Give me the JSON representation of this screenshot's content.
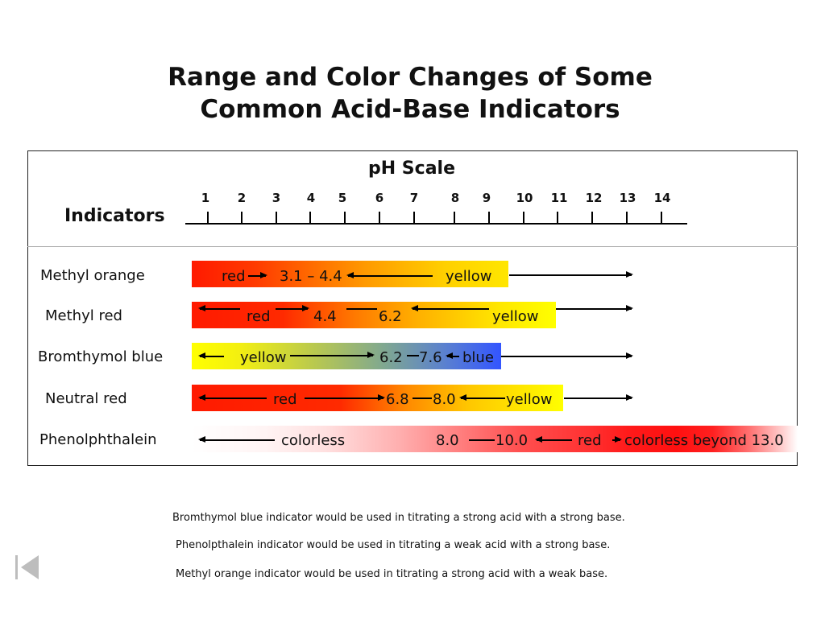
{
  "title_line1": "Range and Color Changes of Some",
  "title_line2": "Common Acid-Base Indicators",
  "scale_title": "pH Scale",
  "indicators_header": "Indicators",
  "ticks": [
    "1",
    "2",
    "3",
    "4",
    "5",
    "6",
    "7",
    "8",
    "9",
    "10",
    "11",
    "12",
    "13",
    "14"
  ],
  "indicators": [
    {
      "name": "Methyl orange",
      "labels": [
        "red",
        "3.1 – 4.4",
        "yellow"
      ]
    },
    {
      "name": "Methyl red",
      "labels": [
        "red",
        "4.4",
        "6.2",
        "yellow"
      ]
    },
    {
      "name": "Bromthymol blue",
      "labels": [
        "yellow",
        "6.2",
        "7.6",
        "blue"
      ]
    },
    {
      "name": "Neutral red",
      "labels": [
        "red",
        "6.8",
        "8.0",
        "yellow"
      ]
    },
    {
      "name": "Phenolphthalein",
      "labels": [
        "colorless",
        "8.0",
        "10.0",
        "red",
        "colorless beyond 13.0"
      ]
    }
  ],
  "notes": [
    "Bromthymol blue indicator would be used in titrating a strong acid with a strong base.",
    "Phenolpthalein indicator would be used in titrating a weak acid with a strong base.",
    "Methyl orange indicator would be used in titrating a strong acid with a weak base."
  ],
  "icons": {
    "nav": "skip-back-icon"
  },
  "colors": {
    "red": "#ff1a00",
    "orange": "#ffa500",
    "yellow": "#ffff00",
    "blue": "#3355ff",
    "pink_light": "#ffe5e5"
  }
}
